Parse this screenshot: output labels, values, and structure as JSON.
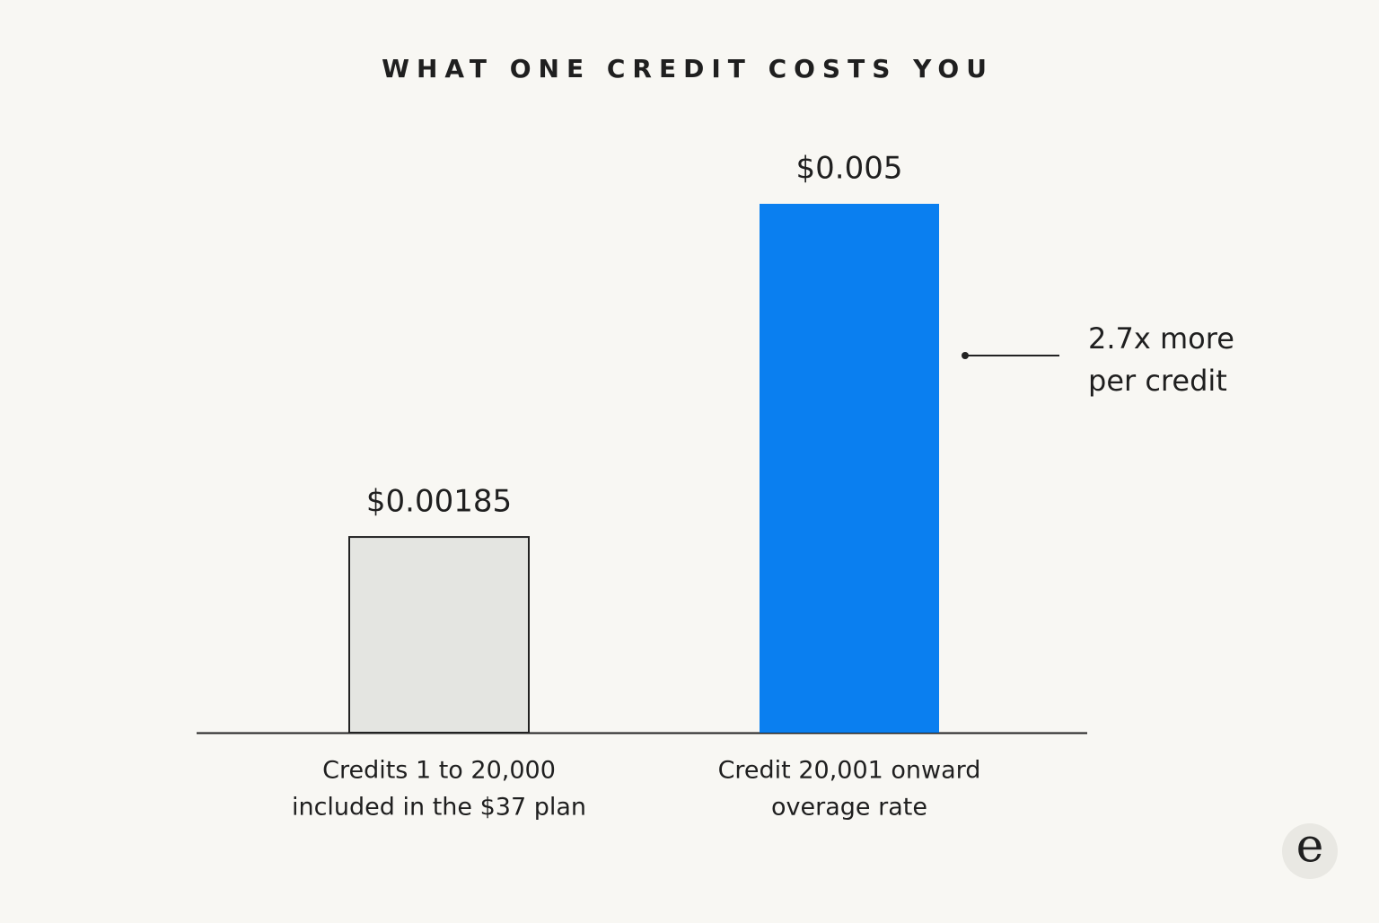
{
  "chart_data": {
    "type": "bar",
    "title": "WHAT ONE CREDIT COSTS YOU",
    "categories": [
      [
        "Credits 1 to 20,000",
        "included in the $37 plan"
      ],
      [
        "Credit 20,001 onward",
        "overage rate"
      ]
    ],
    "values": [
      0.00185,
      0.005
    ],
    "value_labels": [
      "$0.00185",
      "$0.005"
    ],
    "colors": [
      "#e4e5e1",
      "#0a7ff0"
    ],
    "outline_colors": [
      "#222222",
      "none"
    ],
    "annotation": [
      "2.7x more",
      "per credit"
    ]
  },
  "logo": "e"
}
